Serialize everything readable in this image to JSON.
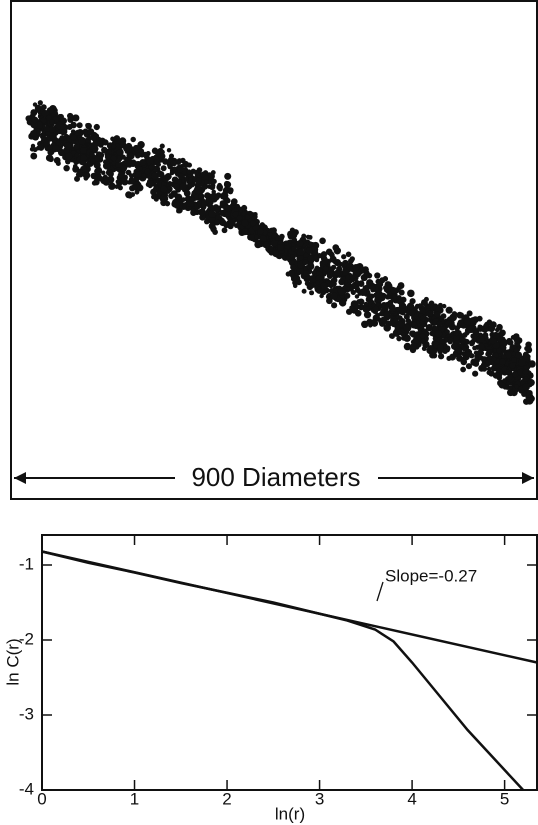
{
  "scale_bar_label": "900 Diameters",
  "chart_data": {
    "type": "line",
    "xlabel": "ln(r)",
    "ylabel": "ln C(r)",
    "annotation": "Slope=-0.27",
    "xlim": [
      0,
      5.35
    ],
    "ylim": [
      -4,
      -0.6
    ],
    "xticks": [
      0,
      1,
      2,
      3,
      4,
      5
    ],
    "yticks": [
      -1,
      -2,
      -3,
      -4
    ],
    "series": [
      {
        "color": "#111111",
        "x": [
          0,
          0.5,
          1,
          1.5,
          2,
          2.5,
          3,
          3.3,
          3.6,
          3.8,
          4,
          4.3,
          4.6,
          4.9,
          5.2
        ],
        "values": [
          -0.82,
          -0.97,
          -1.1,
          -1.24,
          -1.37,
          -1.5,
          -1.65,
          -1.74,
          -1.86,
          -2.02,
          -2.3,
          -2.75,
          -3.2,
          -3.6,
          -4.0
        ]
      },
      {
        "color": "#111111",
        "x": [
          0,
          5.35
        ],
        "values": [
          -0.82,
          -2.3
        ]
      }
    ]
  }
}
